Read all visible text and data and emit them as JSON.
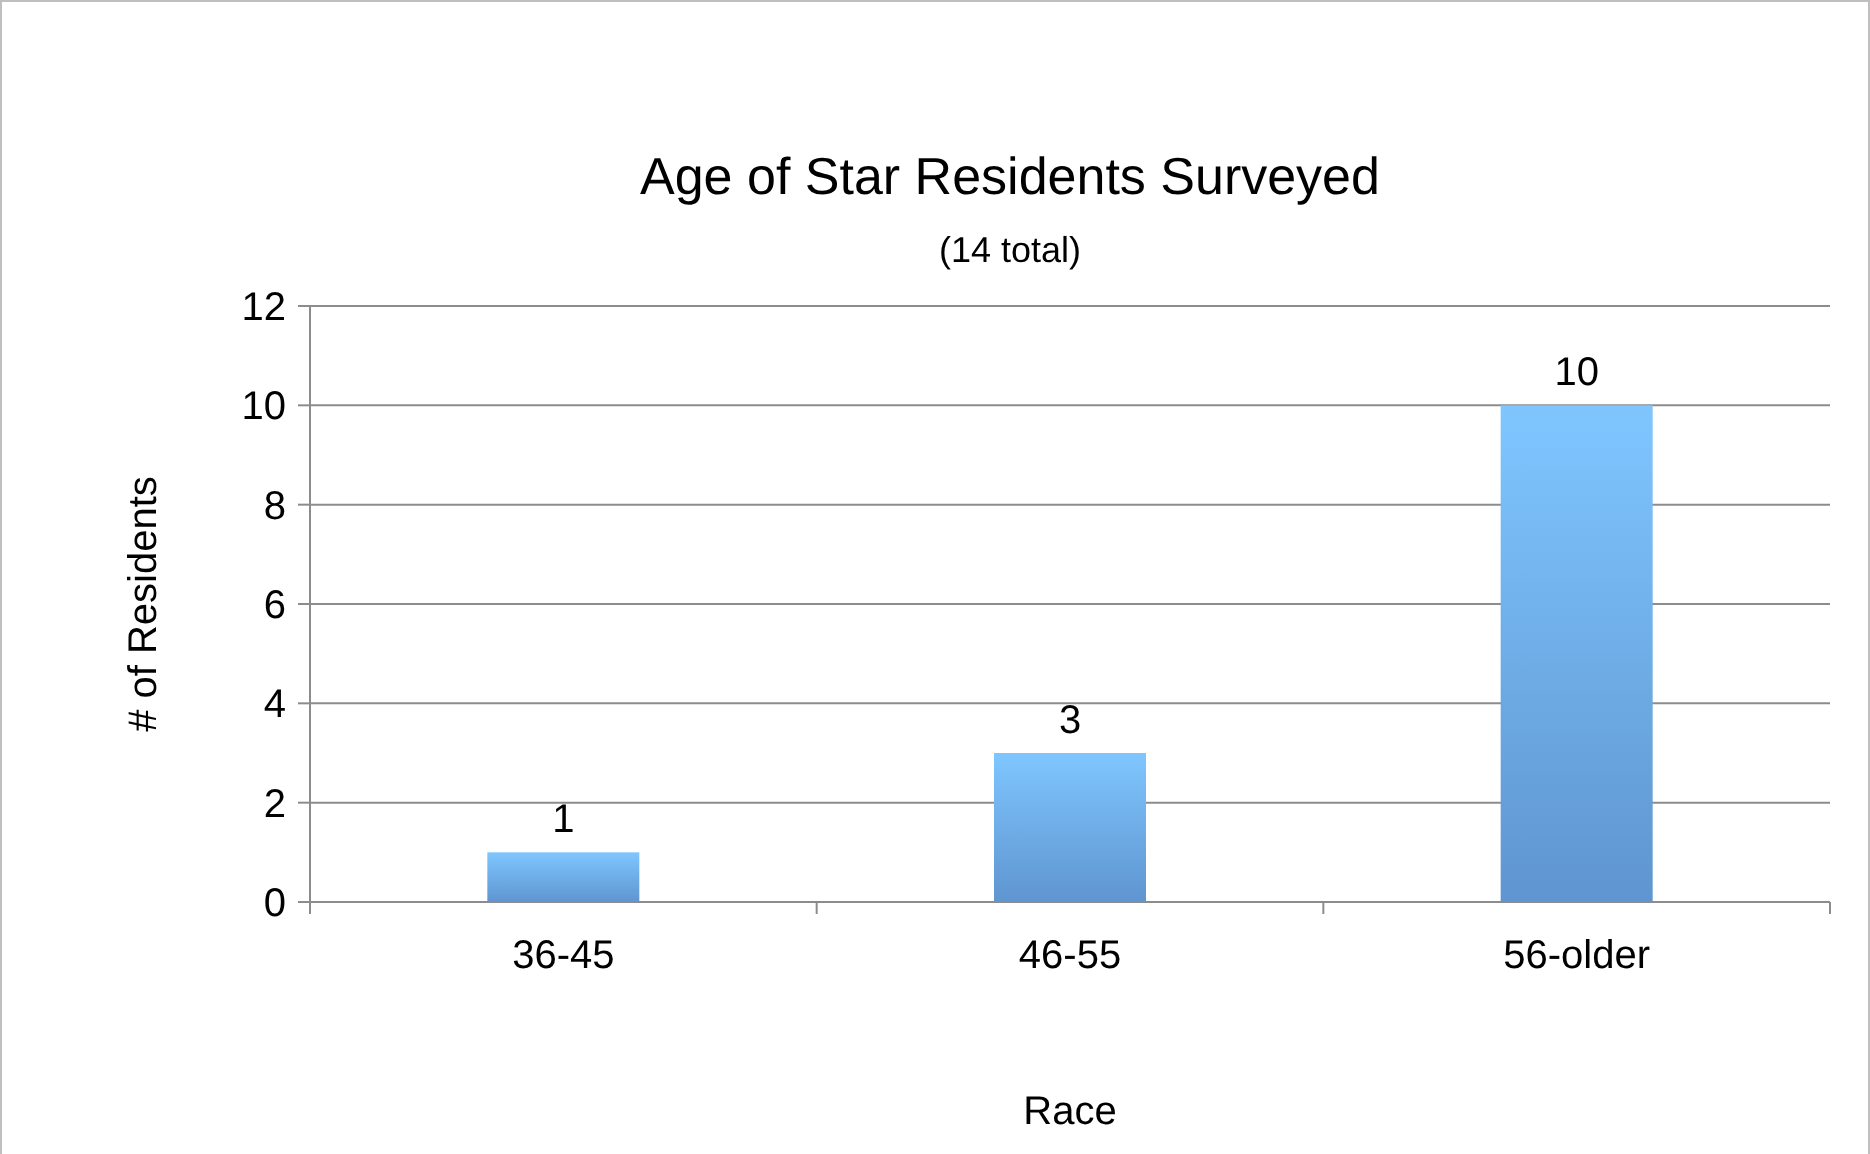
{
  "chart_data": {
    "type": "bar",
    "title": "Age of Star Residents Surveyed",
    "subtitle": "(14 total)",
    "xlabel": "Race",
    "ylabel": "# of Residents",
    "categories": [
      "36-45",
      "46-55",
      "56-older"
    ],
    "values": [
      1,
      3,
      10
    ],
    "color": "#6aa6e8",
    "ylim": [
      0,
      12
    ],
    "yticks": [
      0,
      2,
      4,
      6,
      8,
      10,
      12
    ],
    "grid": "y",
    "data_labels": true
  }
}
